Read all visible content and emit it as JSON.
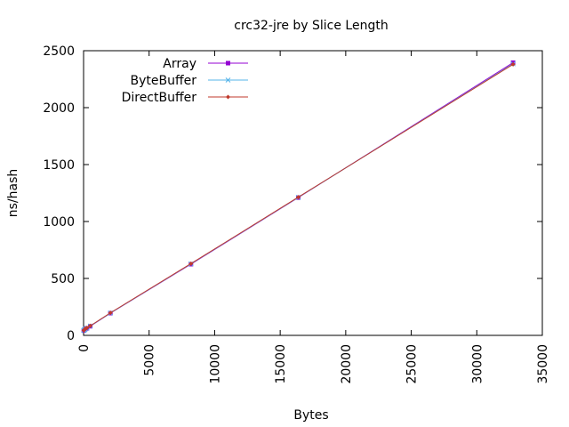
{
  "chart_data": {
    "type": "line",
    "title": "crc32-jre by Slice Length",
    "xlabel": "Bytes",
    "ylabel": "ns/hash",
    "xlim": [
      0,
      35000
    ],
    "ylim": [
      0,
      2500
    ],
    "xticks": [
      0,
      5000,
      10000,
      15000,
      20000,
      25000,
      30000,
      35000
    ],
    "yticks": [
      0,
      500,
      1000,
      1500,
      2000,
      2500
    ],
    "grid": false,
    "legend_position": "top-left",
    "x": [
      16,
      32,
      64,
      128,
      256,
      512,
      2048,
      8192,
      16384,
      32768
    ],
    "series": [
      {
        "name": "Array",
        "color": "#9400d3",
        "marker": "square",
        "values": [
          42,
          44,
          48,
          55,
          62,
          80,
          195,
          625,
          1210,
          2395
        ]
      },
      {
        "name": "ByteBuffer",
        "color": "#56b4e9",
        "marker": "cross",
        "values": [
          43,
          45,
          49,
          56,
          64,
          82,
          196,
          628,
          1212,
          2385
        ]
      },
      {
        "name": "DirectBuffer",
        "color": "#c0392b",
        "marker": "diamond",
        "values": [
          44,
          46,
          50,
          58,
          66,
          84,
          198,
          630,
          1214,
          2380
        ]
      }
    ]
  }
}
